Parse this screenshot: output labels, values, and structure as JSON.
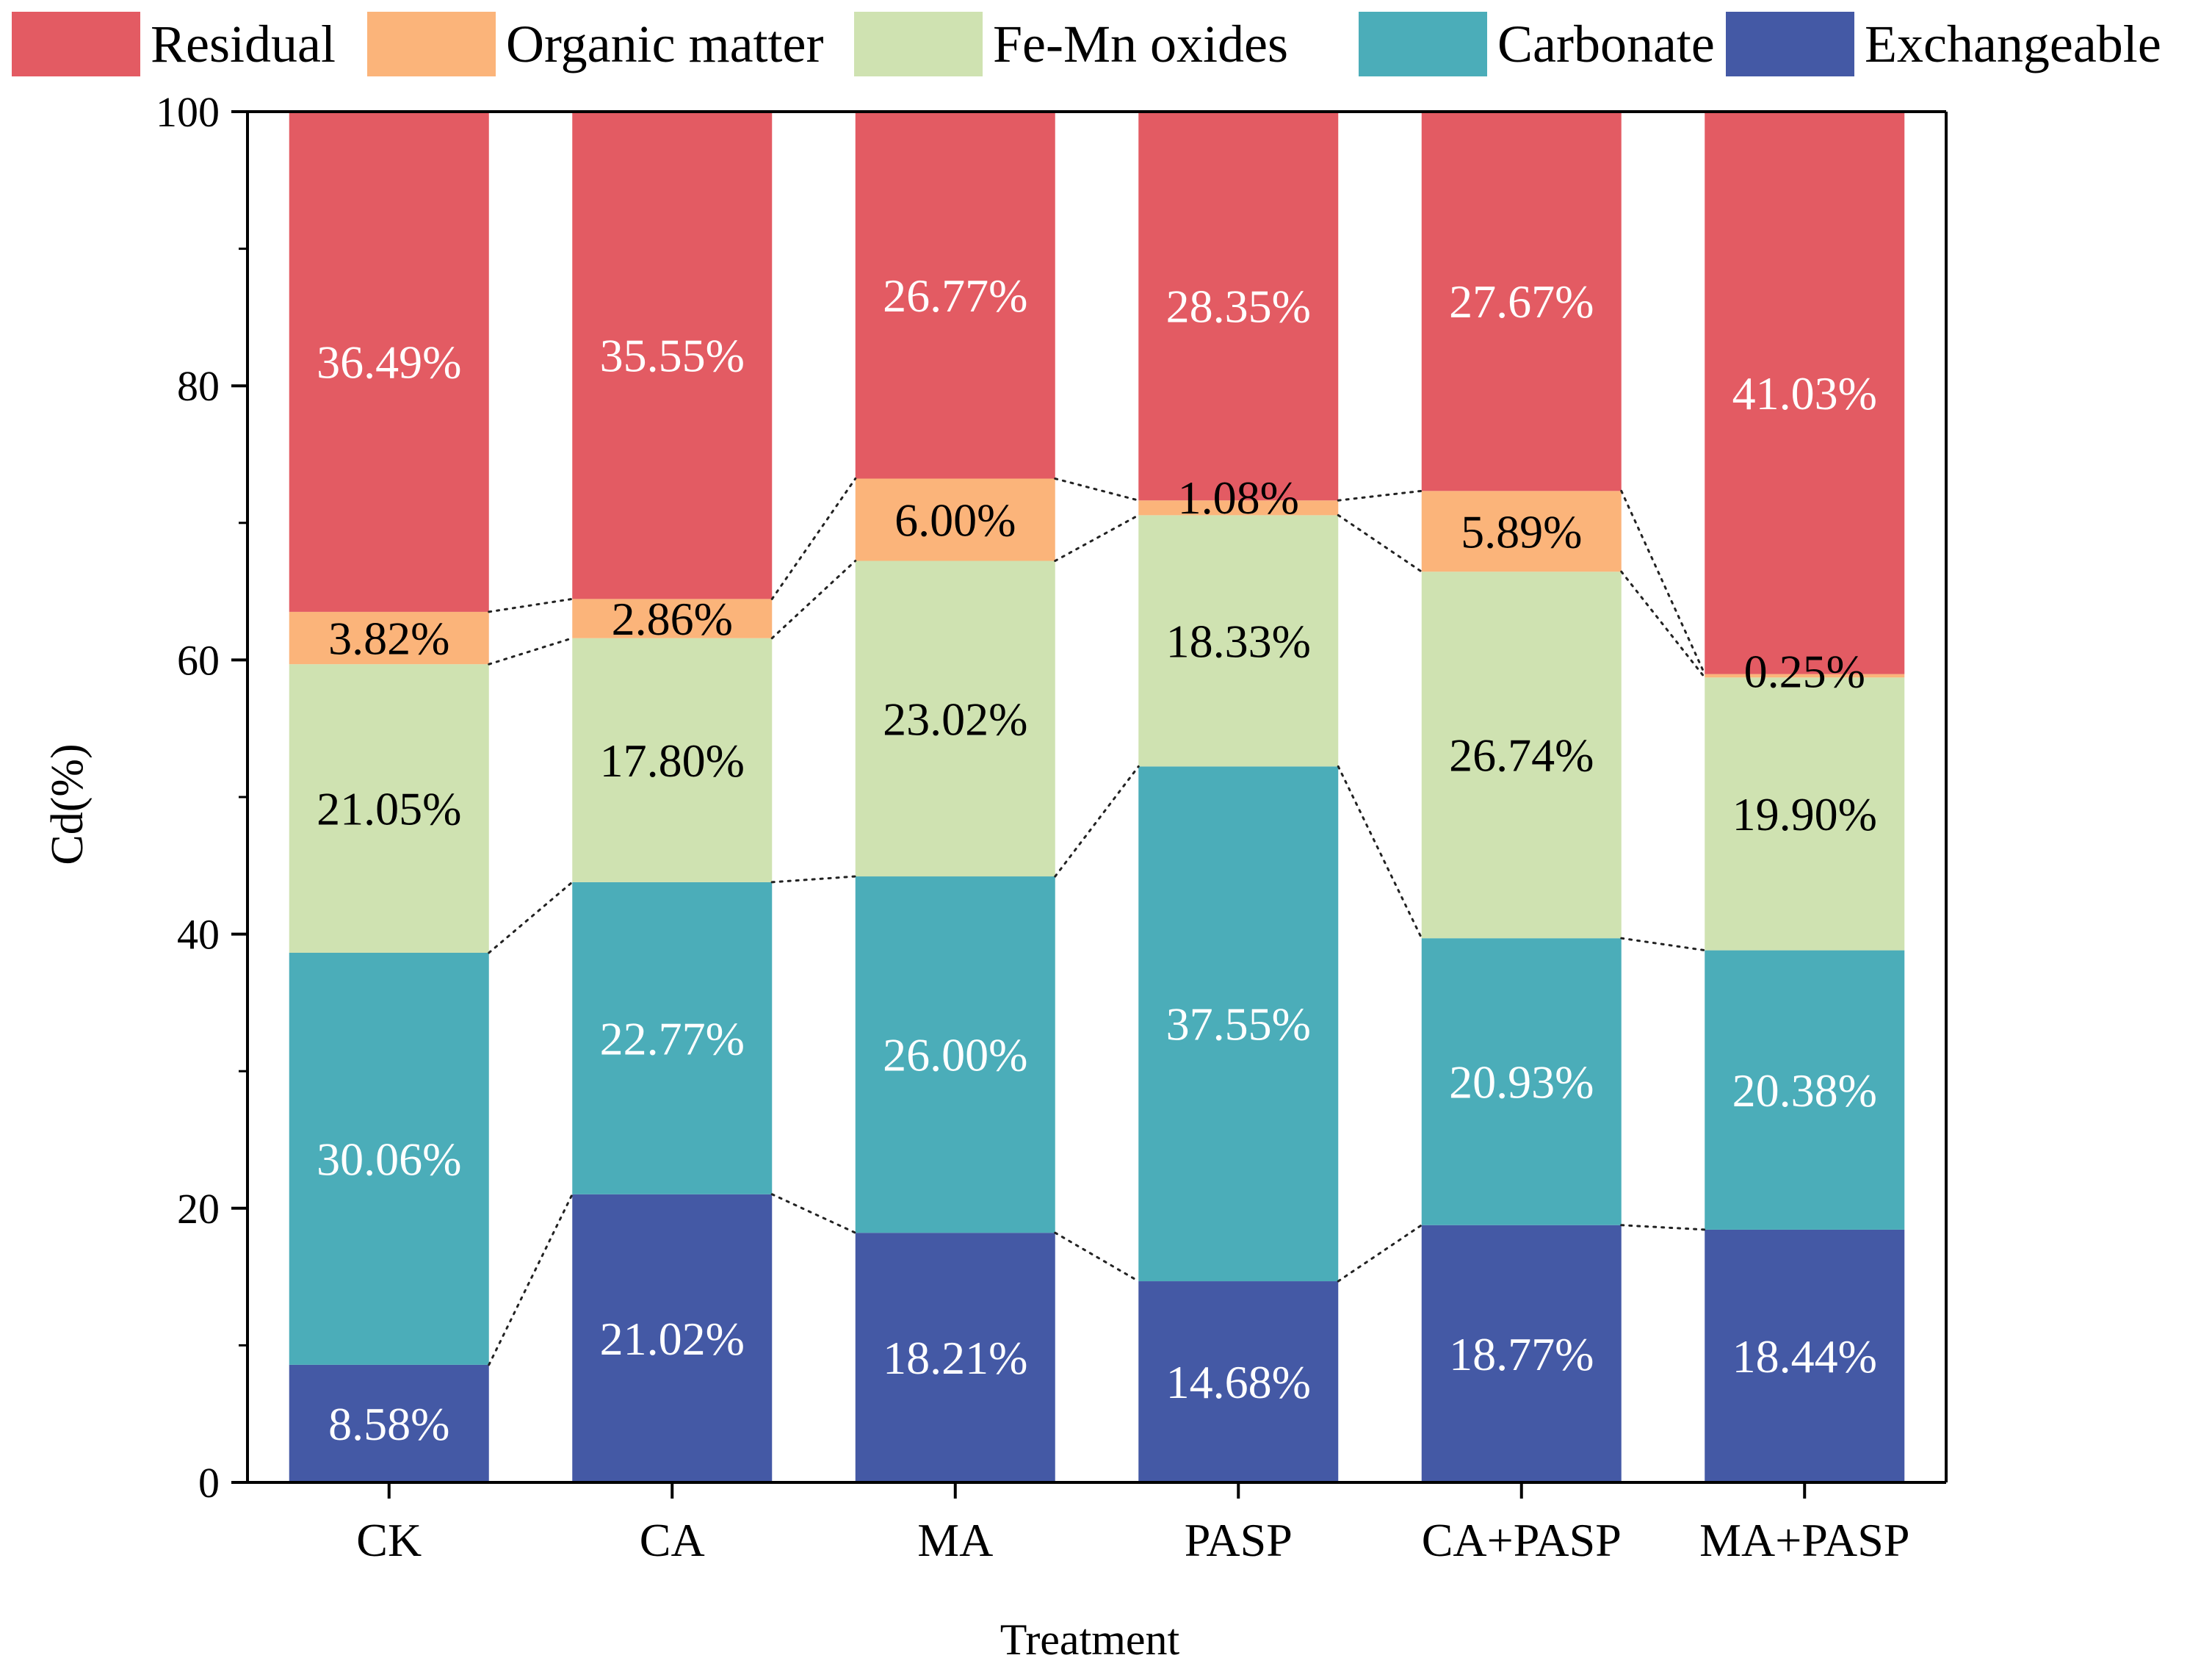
{
  "chart_data": {
    "type": "bar",
    "stacked": true,
    "percent": true,
    "title": "",
    "xlabel": "Treatment",
    "ylabel": "Cd(%)",
    "ylim": [
      0,
      100
    ],
    "yticks": [
      0,
      20,
      40,
      60,
      80,
      100
    ],
    "grid": false,
    "legend_position": "top",
    "connector_lines": "dotted",
    "categories": [
      "CK",
      "CA",
      "MA",
      "PASP",
      "CA+PASP",
      "MA+PASP"
    ],
    "series": [
      {
        "name": "Exchangeable",
        "color": "#4459a5",
        "label_color": "#ffffff",
        "values": [
          8.58,
          21.02,
          18.21,
          14.68,
          18.77,
          18.44
        ],
        "labels": [
          "8.58%",
          "21.02%",
          "18.21%",
          "14.68%",
          "18.77%",
          "18.44%"
        ]
      },
      {
        "name": "Carbonate",
        "color": "#4badb9",
        "label_color": "#ffffff",
        "values": [
          30.06,
          22.77,
          26.0,
          37.55,
          20.93,
          20.38
        ],
        "labels": [
          "30.06%",
          "22.77%",
          "26.00%",
          "37.55%",
          "20.93%",
          "20.38%"
        ]
      },
      {
        "name": "Fe-Mn oxides",
        "color": "#cfe2b1",
        "label_color": "#000000",
        "values": [
          21.05,
          17.8,
          23.02,
          18.33,
          26.74,
          19.9
        ],
        "labels": [
          "21.05%",
          "17.80%",
          "23.02%",
          "18.33%",
          "26.74%",
          "19.90%"
        ]
      },
      {
        "name": "Organic matter",
        "color": "#fbb47a",
        "label_color": "#000000",
        "values": [
          3.82,
          2.86,
          6.0,
          1.08,
          5.89,
          0.25
        ],
        "labels": [
          "3.82%",
          "2.86%",
          "6.00%",
          "1.08%",
          "5.89%",
          "0.25%"
        ]
      },
      {
        "name": "Residual",
        "color": "#e35b63",
        "label_color": "#ffffff",
        "values": [
          36.49,
          35.55,
          26.77,
          28.35,
          27.67,
          41.03
        ],
        "labels": [
          "36.49%",
          "35.55%",
          "26.77%",
          "28.35%",
          "27.67%",
          "41.03%"
        ]
      }
    ],
    "legend_order": [
      "Residual",
      "Organic matter",
      "Fe-Mn oxides",
      "Carbonate",
      "Exchangeable"
    ]
  }
}
